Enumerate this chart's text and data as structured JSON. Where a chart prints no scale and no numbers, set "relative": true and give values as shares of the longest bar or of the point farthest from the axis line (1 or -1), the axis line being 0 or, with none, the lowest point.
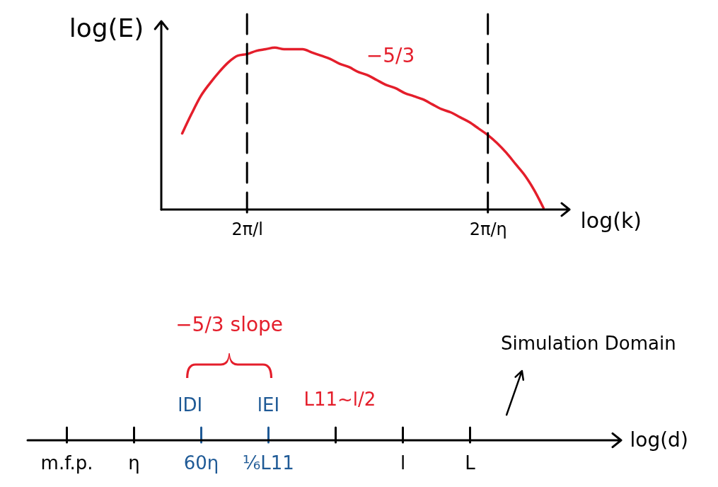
{
  "chart_data": [
    {
      "type": "line",
      "relative": true,
      "xlabel": "log(k)",
      "ylabel": "log(E)",
      "categories": [
        null,
        null,
        null,
        null,
        null,
        null,
        null,
        "2π/l",
        null,
        null,
        null,
        null,
        null,
        null,
        null,
        null,
        null,
        null,
        null,
        null,
        null,
        null,
        null,
        null,
        null,
        null,
        null,
        null,
        null,
        null,
        null,
        null,
        null,
        "2π/η",
        null,
        null,
        null,
        null,
        null,
        null
      ],
      "series": [
        {
          "color": "#e41e2b",
          "values": [
            0.47,
            0.59,
            0.7,
            0.78,
            0.85,
            0.91,
            0.95,
            0.96,
            0.98,
            0.99,
            1,
            0.99,
            0.99,
            0.99,
            0.97,
            0.95,
            0.93,
            0.9,
            0.88,
            0.85,
            0.83,
            0.8,
            0.77,
            0.75,
            0.72,
            0.7,
            0.68,
            0.65,
            0.62,
            0.6,
            0.57,
            0.54,
            0.5,
            0.46,
            0.41,
            0.35,
            0.28,
            0.21,
            0.12,
            0.01
          ]
        }
      ],
      "ref_lines": [
        {
          "axis": "x",
          "value": "2π/l",
          "line_style": "dashed",
          "color": "#000000"
        },
        {
          "axis": "x",
          "value": "2π/η",
          "line_style": "dashed",
          "color": "#000000"
        }
      ],
      "annotations": [
        "−5/3"
      ]
    },
    {
      "type": "other",
      "xlabel": "log(d)",
      "categories": [
        "m.f.p.",
        "η",
        "60η",
        "⅙L11",
        null,
        "l",
        "L"
      ],
      "annotations": [
        {
          "text": "lDI",
          "x": "60η"
        },
        {
          "text": "lEI",
          "x": "⅙L11"
        },
        "L11~l/2",
        "−5/3 slope",
        {
          "text": "Simulation Domain",
          "x": "L"
        }
      ]
    }
  ]
}
